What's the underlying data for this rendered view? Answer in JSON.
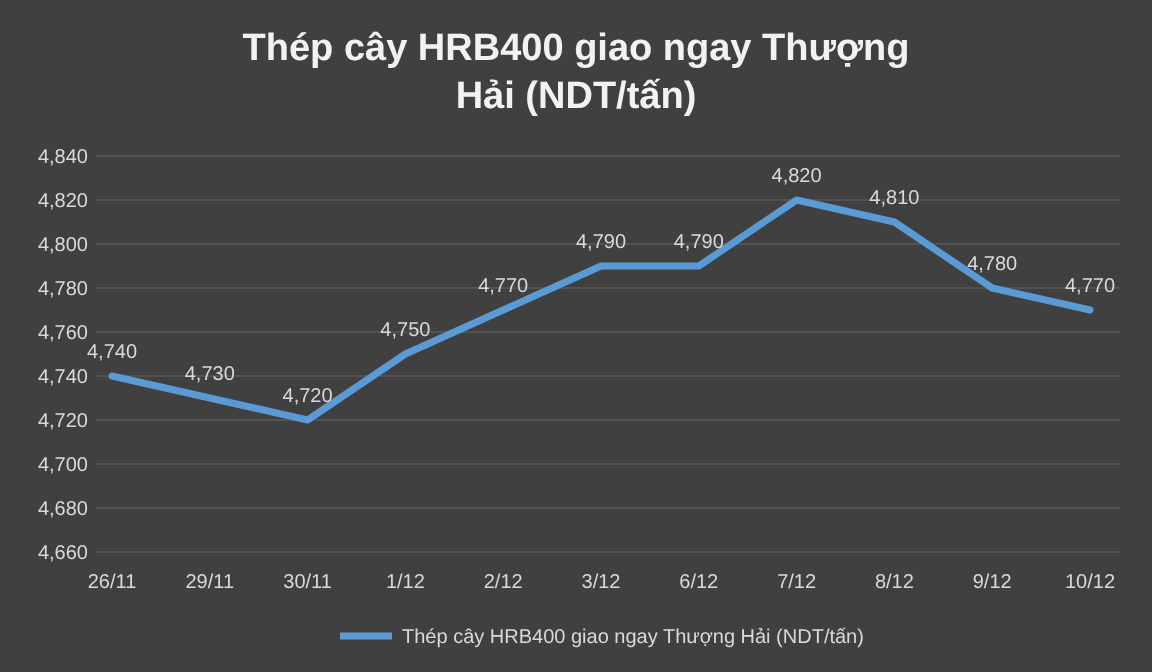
{
  "chart_data": {
    "type": "line",
    "title": "Thép cây HRB400 giao ngay Thượng Hải (NDT/tấn)",
    "categories": [
      "26/11",
      "29/11",
      "30/11",
      "1/12",
      "2/12",
      "3/12",
      "6/12",
      "7/12",
      "8/12",
      "9/12",
      "10/12"
    ],
    "series": [
      {
        "name": "Thép cây HRB400 giao ngay Thượng Hải (NDT/tấn)",
        "color": "#5b9bd5",
        "values": [
          4740,
          4730,
          4720,
          4750,
          4770,
          4790,
          4790,
          4820,
          4810,
          4780,
          4770
        ],
        "value_labels": [
          "4,740",
          "4,730",
          "4,720",
          "4,750",
          "4,770",
          "4,790",
          "4,790",
          "4,820",
          "4,810",
          "4,780",
          "4,770"
        ]
      }
    ],
    "ylim": [
      4660,
      4840
    ],
    "yticks": [
      {
        "value": 4660,
        "label": "4,660"
      },
      {
        "value": 4680,
        "label": "4,680"
      },
      {
        "value": 4700,
        "label": "4,700"
      },
      {
        "value": 4720,
        "label": "4,720"
      },
      {
        "value": 4740,
        "label": "4,740"
      },
      {
        "value": 4760,
        "label": "4,760"
      },
      {
        "value": 4780,
        "label": "4,780"
      },
      {
        "value": 4800,
        "label": "4,800"
      },
      {
        "value": 4820,
        "label": "4,820"
      },
      {
        "value": 4840,
        "label": "4,840"
      }
    ],
    "grid": "y",
    "legend": "bottom",
    "marker": "none",
    "line_style": "solid"
  }
}
